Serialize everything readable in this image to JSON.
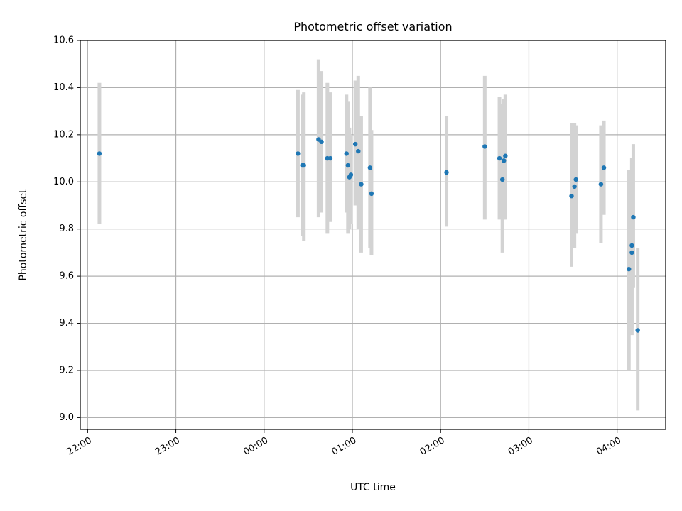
{
  "chart_data": {
    "type": "scatter",
    "title": "Photometric offset variation",
    "xlabel": "UTC time",
    "ylabel": "Photometric offset",
    "x_axis": {
      "kind": "time",
      "range": [
        "21:55",
        "04:33"
      ],
      "ticks": [
        "22:00",
        "23:00",
        "00:00",
        "01:00",
        "02:00",
        "03:00",
        "04:00"
      ],
      "tick_rotation_deg": 30
    },
    "y_axis": {
      "range": [
        8.95,
        10.6
      ],
      "ticks": [
        "9.0",
        "9.2",
        "9.4",
        "9.6",
        "9.8",
        "10.0",
        "10.2",
        "10.4",
        "10.6"
      ]
    },
    "grid": true,
    "legend": "none",
    "marker_color": "#1f77b4",
    "errorbar_color": "#d3d3d3",
    "points": [
      {
        "x": "22:08",
        "y": 10.12,
        "yerr_low": 9.82,
        "yerr_high": 10.42
      },
      {
        "x": "00:23",
        "y": 10.12,
        "yerr_low": 9.85,
        "yerr_high": 10.39
      },
      {
        "x": "00:26",
        "y": 10.07,
        "yerr_low": 9.77,
        "yerr_high": 10.37
      },
      {
        "x": "00:27",
        "y": 10.07,
        "yerr_low": 9.75,
        "yerr_high": 10.38
      },
      {
        "x": "00:37",
        "y": 10.18,
        "yerr_low": 9.85,
        "yerr_high": 10.52
      },
      {
        "x": "00:39",
        "y": 10.17,
        "yerr_low": 9.87,
        "yerr_high": 10.47
      },
      {
        "x": "00:43",
        "y": 10.1,
        "yerr_low": 9.78,
        "yerr_high": 10.42
      },
      {
        "x": "00:45",
        "y": 10.1,
        "yerr_low": 9.83,
        "yerr_high": 10.38
      },
      {
        "x": "00:56",
        "y": 10.12,
        "yerr_low": 9.87,
        "yerr_high": 10.37
      },
      {
        "x": "00:57",
        "y": 10.07,
        "yerr_low": 9.78,
        "yerr_high": 10.34
      },
      {
        "x": "00:58",
        "y": 10.02,
        "yerr_low": 9.8,
        "yerr_high": 10.23
      },
      {
        "x": "00:59",
        "y": 10.03,
        "yerr_low": 9.82,
        "yerr_high": 10.2
      },
      {
        "x": "01:02",
        "y": 10.16,
        "yerr_low": 9.9,
        "yerr_high": 10.43
      },
      {
        "x": "01:04",
        "y": 10.13,
        "yerr_low": 9.8,
        "yerr_high": 10.45
      },
      {
        "x": "01:06",
        "y": 9.99,
        "yerr_low": 9.7,
        "yerr_high": 10.28
      },
      {
        "x": "01:12",
        "y": 10.06,
        "yerr_low": 9.72,
        "yerr_high": 10.4
      },
      {
        "x": "01:13",
        "y": 9.95,
        "yerr_low": 9.69,
        "yerr_high": 10.22
      },
      {
        "x": "02:04",
        "y": 10.04,
        "yerr_low": 9.81,
        "yerr_high": 10.28
      },
      {
        "x": "02:30",
        "y": 10.15,
        "yerr_low": 9.84,
        "yerr_high": 10.45
      },
      {
        "x": "02:40",
        "y": 10.1,
        "yerr_low": 9.84,
        "yerr_high": 10.36
      },
      {
        "x": "02:42",
        "y": 10.01,
        "yerr_low": 9.7,
        "yerr_high": 10.33
      },
      {
        "x": "02:43",
        "y": 10.09,
        "yerr_low": 9.84,
        "yerr_high": 10.35
      },
      {
        "x": "02:44",
        "y": 10.11,
        "yerr_low": 9.84,
        "yerr_high": 10.37
      },
      {
        "x": "03:29",
        "y": 9.94,
        "yerr_low": 9.64,
        "yerr_high": 10.25
      },
      {
        "x": "03:31",
        "y": 9.98,
        "yerr_low": 9.72,
        "yerr_high": 10.25
      },
      {
        "x": "03:32",
        "y": 10.01,
        "yerr_low": 9.78,
        "yerr_high": 10.24
      },
      {
        "x": "03:49",
        "y": 9.99,
        "yerr_low": 9.74,
        "yerr_high": 10.24
      },
      {
        "x": "03:51",
        "y": 10.06,
        "yerr_low": 9.86,
        "yerr_high": 10.26
      },
      {
        "x": "04:08",
        "y": 9.63,
        "yerr_low": 9.2,
        "yerr_high": 10.05
      },
      {
        "x": "04:10",
        "y": 9.73,
        "yerr_low": 9.35,
        "yerr_high": 10.1
      },
      {
        "x": "04:10",
        "y": 9.7,
        "yerr_low": 9.38,
        "yerr_high": 10.02
      },
      {
        "x": "04:11",
        "y": 9.85,
        "yerr_low": 9.55,
        "yerr_high": 10.16
      },
      {
        "x": "04:14",
        "y": 9.37,
        "yerr_low": 9.03,
        "yerr_high": 9.72
      }
    ]
  }
}
